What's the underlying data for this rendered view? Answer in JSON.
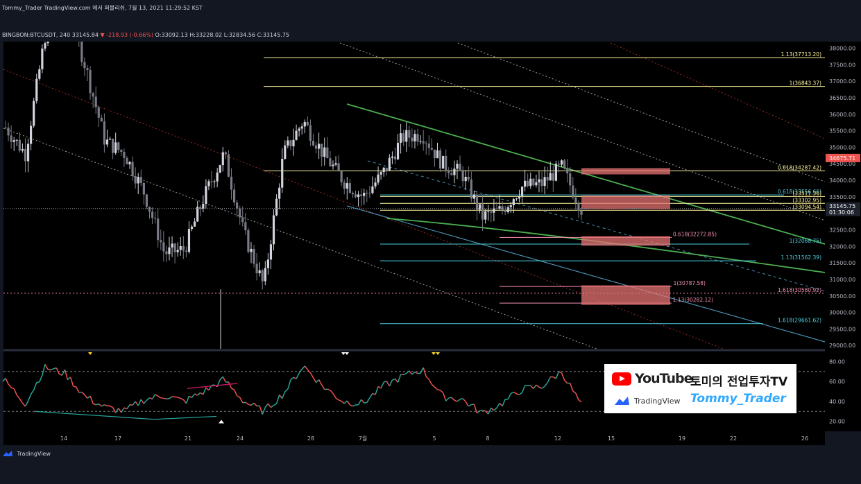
{
  "header": {
    "title": "Tommy_Trader TradingView.com 에서 퍼블리쉬, 7월 13, 2021 11:29:52 KST",
    "symbol": "BINGBON:BTCUSDT, 240",
    "last": "33145.84",
    "change": "▼ -218.93 (-0.66%)",
    "open": "O:33092.13",
    "high": "H:33228.02",
    "low": "L:32834.56",
    "close": "C:33145.75"
  },
  "colors": {
    "background": "#000000",
    "up": "#d1d4dc",
    "down": "#787b86",
    "green_channel": "#4caf50",
    "fib_yellow": "#fff59d",
    "fib_blue": "#4dd0e1",
    "fib_pink": "#f48fb1",
    "zone": "#e57373",
    "price_badge": "#ef5350",
    "rsi_up": "#26a69a",
    "rsi_down": "#ef5350"
  },
  "chart_data": [
    {
      "type": "candlestick",
      "symbol": "BINGBON:BTCUSDT",
      "timeframe": "240",
      "ylim": [
        28900,
        38200
      ],
      "y_ticks": [
        "38000.00",
        "37500.00",
        "37000.00",
        "36500.00",
        "36000.00",
        "35500.00",
        "35000.00",
        "34500.00",
        "34000.00",
        "33500.00",
        "33000.00",
        "32500.00",
        "32000.00",
        "31500.00",
        "31000.00",
        "30500.00",
        "30000.00",
        "29500.00",
        "29000.00"
      ],
      "x_ticks": [
        "14",
        "17",
        "21",
        "24",
        "28",
        "7월",
        "5",
        "8",
        "12",
        "15",
        "19",
        "22",
        "26"
      ],
      "close_path": [
        [
          "14",
          35600
        ],
        [
          "15",
          34800
        ],
        [
          "16",
          38400
        ],
        [
          "17",
          39500
        ],
        [
          "18",
          37500
        ],
        [
          "19",
          35200
        ],
        [
          "20",
          34800
        ],
        [
          "21",
          33600
        ],
        [
          "22",
          31800
        ],
        [
          "23",
          31900
        ],
        [
          "24",
          33500
        ],
        [
          "25",
          34800
        ],
        [
          "26",
          32400
        ],
        [
          "27",
          30800
        ],
        [
          "28",
          34800
        ],
        [
          "29",
          35800
        ],
        [
          "30",
          34800
        ],
        [
          "7월",
          34000
        ],
        [
          "7월 2",
          33500
        ],
        [
          "7월 3",
          34200
        ],
        [
          "7월 4",
          35300
        ],
        [
          "7월 5",
          35400
        ],
        [
          "7월 6",
          34500
        ],
        [
          "7월 7",
          34200
        ],
        [
          "7월 8",
          32900
        ],
        [
          "7월 9",
          33100
        ],
        [
          "7월 10",
          33800
        ],
        [
          "7월 11",
          33900
        ],
        [
          "7월 12",
          34400
        ],
        [
          "7월 13",
          33145.75
        ]
      ],
      "current_price": "33145.75",
      "countdown": "01:30:06",
      "badge_price": "34675.71",
      "levels": [
        {
          "label": "1.13(37713.20)",
          "value": 37713.2,
          "color": "fib_yellow"
        },
        {
          "label": "1(36843.37)",
          "value": 36843.37,
          "color": "fib_yellow"
        },
        {
          "label": "0.618(34287.42)",
          "value": 34287.42,
          "color": "fib_yellow"
        },
        {
          "label": "0.618(33556.66)",
          "value": 33556.66,
          "color": "fib_blue"
        },
        {
          "label": "(33511.36)",
          "value": 33511.36,
          "color": "fib_yellow"
        },
        {
          "label": "(33302.95)",
          "value": 33302.95,
          "color": "fib_yellow"
        },
        {
          "label": "(33094.54)",
          "value": 33094.54,
          "color": "fib_yellow"
        },
        {
          "label": "0.618(32272.85)",
          "value": 32272.85,
          "color": "fib_pink"
        },
        {
          "label": "1(32068.75)",
          "value": 32068.75,
          "color": "fib_blue"
        },
        {
          "label": "1.13(31562.39)",
          "value": 31562.39,
          "color": "fib_blue"
        },
        {
          "label": "1(30787.58)",
          "value": 30787.58,
          "color": "fib_pink"
        },
        {
          "label": "1.618(30580.92)",
          "value": 30580.92,
          "color": "fib_pink"
        },
        {
          "label": "1.13(30282.12)",
          "value": 30282.12,
          "color": "fib_pink"
        },
        {
          "label": "1.618(29661.62)",
          "value": 29661.62,
          "color": "fib_blue"
        }
      ],
      "zones": [
        {
          "from": 34180,
          "to": 34370
        },
        {
          "from": 33130,
          "to": 33540
        },
        {
          "from": 32020,
          "to": 32310
        },
        {
          "from": 30230,
          "to": 30820
        }
      ]
    },
    {
      "type": "line",
      "name": "RSI",
      "ylim": [
        10,
        90
      ],
      "y_ticks": [
        "80.00",
        "60.00",
        "40.00",
        "20.00"
      ],
      "guides": [
        70,
        30
      ],
      "x": [
        "14",
        "15",
        "16",
        "17",
        "18",
        "19",
        "20",
        "21",
        "22",
        "23",
        "24",
        "25",
        "26",
        "27",
        "28",
        "29",
        "30",
        "7월",
        "7월 2",
        "7월 3",
        "7월 4",
        "7월 5",
        "7월 6",
        "7월 7",
        "7월 8",
        "7월 9",
        "7월 10",
        "7월 11",
        "7월 12",
        "7월 13"
      ],
      "values": [
        60,
        38,
        74,
        68,
        45,
        34,
        30,
        42,
        46,
        40,
        50,
        62,
        40,
        30,
        48,
        76,
        55,
        40,
        38,
        55,
        65,
        72,
        45,
        42,
        28,
        38,
        52,
        55,
        70,
        36
      ]
    }
  ],
  "branding": {
    "youtube": "YouTube",
    "channel": "토미의 전업투자TV",
    "tradingview": "TradingView",
    "handle": "Tommy_Trader"
  },
  "footer": {
    "brand": "TradingView"
  }
}
